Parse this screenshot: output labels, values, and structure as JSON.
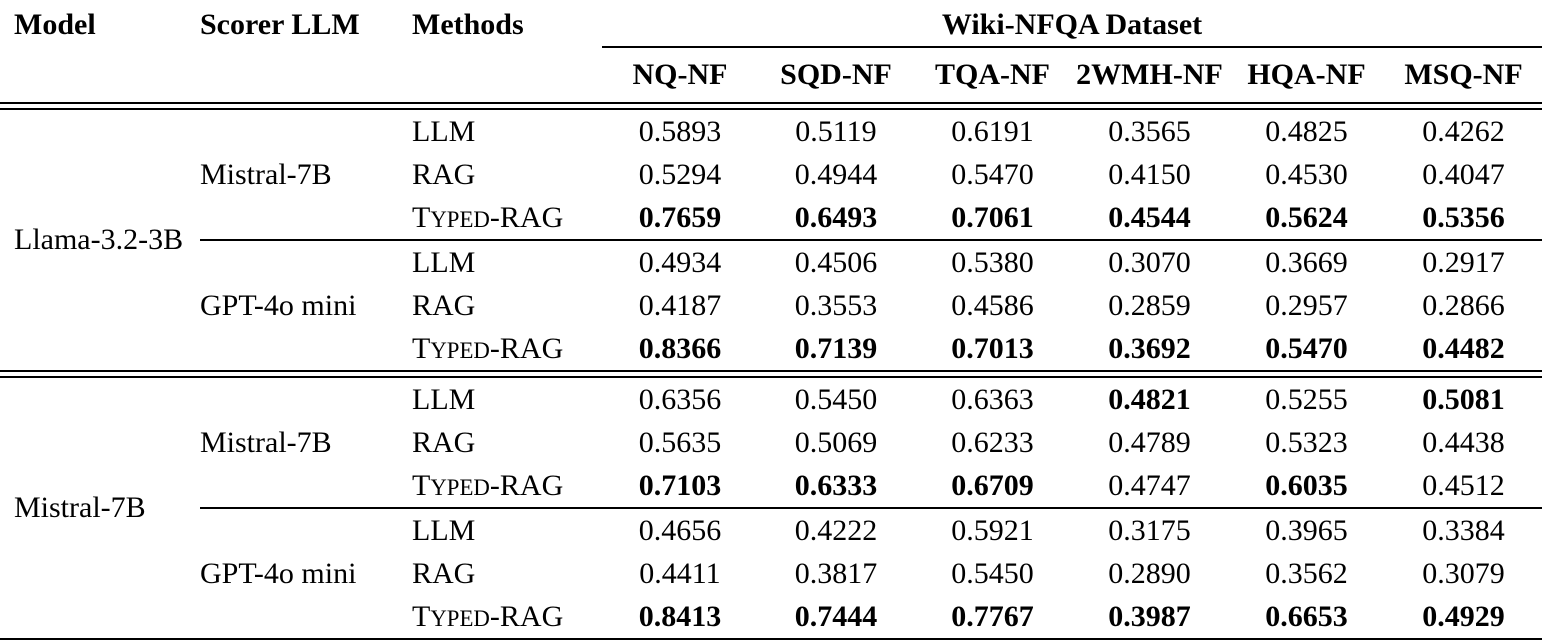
{
  "page": {
    "background_color": "#ffffff",
    "text_color": "#000000",
    "rule_color": "#000000"
  },
  "table": {
    "header": {
      "model": "Model",
      "scorer_llm": "Scorer LLM",
      "methods": "Methods",
      "dataset_group": "Wiki-NFQA Dataset",
      "dataset_columns": [
        "NQ-NF",
        "SQD-NF",
        "TQA-NF",
        "2WMH-NF",
        "HQA-NF",
        "MSQ-NF"
      ]
    },
    "groups": [
      {
        "model": "Llama-3.2-3B",
        "scorer_blocks": [
          {
            "scorer": "Mistral-7B",
            "rows": [
              {
                "method": "LLM",
                "smallcaps": false,
                "values": [
                  "0.5893",
                  "0.5119",
                  "0.6191",
                  "0.3565",
                  "0.4825",
                  "0.4262"
                ],
                "bold": [
                  false,
                  false,
                  false,
                  false,
                  false,
                  false
                ]
              },
              {
                "method": "RAG",
                "smallcaps": false,
                "values": [
                  "0.5294",
                  "0.4944",
                  "0.5470",
                  "0.4150",
                  "0.4530",
                  "0.4047"
                ],
                "bold": [
                  false,
                  false,
                  false,
                  false,
                  false,
                  false
                ]
              },
              {
                "method": "Typed-RAG",
                "smallcaps": true,
                "values": [
                  "0.7659",
                  "0.6493",
                  "0.7061",
                  "0.4544",
                  "0.5624",
                  "0.5356"
                ],
                "bold": [
                  true,
                  true,
                  true,
                  true,
                  true,
                  true
                ]
              }
            ]
          },
          {
            "scorer": "GPT-4o mini",
            "rows": [
              {
                "method": "LLM",
                "smallcaps": false,
                "values": [
                  "0.4934",
                  "0.4506",
                  "0.5380",
                  "0.3070",
                  "0.3669",
                  "0.2917"
                ],
                "bold": [
                  false,
                  false,
                  false,
                  false,
                  false,
                  false
                ]
              },
              {
                "method": "RAG",
                "smallcaps": false,
                "values": [
                  "0.4187",
                  "0.3553",
                  "0.4586",
                  "0.2859",
                  "0.2957",
                  "0.2866"
                ],
                "bold": [
                  false,
                  false,
                  false,
                  false,
                  false,
                  false
                ]
              },
              {
                "method": "Typed-RAG",
                "smallcaps": true,
                "values": [
                  "0.8366",
                  "0.7139",
                  "0.7013",
                  "0.3692",
                  "0.5470",
                  "0.4482"
                ],
                "bold": [
                  true,
                  true,
                  true,
                  true,
                  true,
                  true
                ]
              }
            ]
          }
        ]
      },
      {
        "model": "Mistral-7B",
        "scorer_blocks": [
          {
            "scorer": "Mistral-7B",
            "rows": [
              {
                "method": "LLM",
                "smallcaps": false,
                "values": [
                  "0.6356",
                  "0.5450",
                  "0.6363",
                  "0.4821",
                  "0.5255",
                  "0.5081"
                ],
                "bold": [
                  false,
                  false,
                  false,
                  true,
                  false,
                  true
                ]
              },
              {
                "method": "RAG",
                "smallcaps": false,
                "values": [
                  "0.5635",
                  "0.5069",
                  "0.6233",
                  "0.4789",
                  "0.5323",
                  "0.4438"
                ],
                "bold": [
                  false,
                  false,
                  false,
                  false,
                  false,
                  false
                ]
              },
              {
                "method": "Typed-RAG",
                "smallcaps": true,
                "values": [
                  "0.7103",
                  "0.6333",
                  "0.6709",
                  "0.4747",
                  "0.6035",
                  "0.4512"
                ],
                "bold": [
                  true,
                  true,
                  true,
                  false,
                  true,
                  false
                ]
              }
            ]
          },
          {
            "scorer": "GPT-4o mini",
            "rows": [
              {
                "method": "LLM",
                "smallcaps": false,
                "values": [
                  "0.4656",
                  "0.4222",
                  "0.5921",
                  "0.3175",
                  "0.3965",
                  "0.3384"
                ],
                "bold": [
                  false,
                  false,
                  false,
                  false,
                  false,
                  false
                ]
              },
              {
                "method": "RAG",
                "smallcaps": false,
                "values": [
                  "0.4411",
                  "0.3817",
                  "0.5450",
                  "0.2890",
                  "0.3562",
                  "0.3079"
                ],
                "bold": [
                  false,
                  false,
                  false,
                  false,
                  false,
                  false
                ]
              },
              {
                "method": "Typed-RAG",
                "smallcaps": true,
                "values": [
                  "0.8413",
                  "0.7444",
                  "0.7767",
                  "0.3987",
                  "0.6653",
                  "0.4929"
                ],
                "bold": [
                  true,
                  true,
                  true,
                  true,
                  true,
                  true
                ]
              }
            ]
          }
        ]
      }
    ]
  }
}
